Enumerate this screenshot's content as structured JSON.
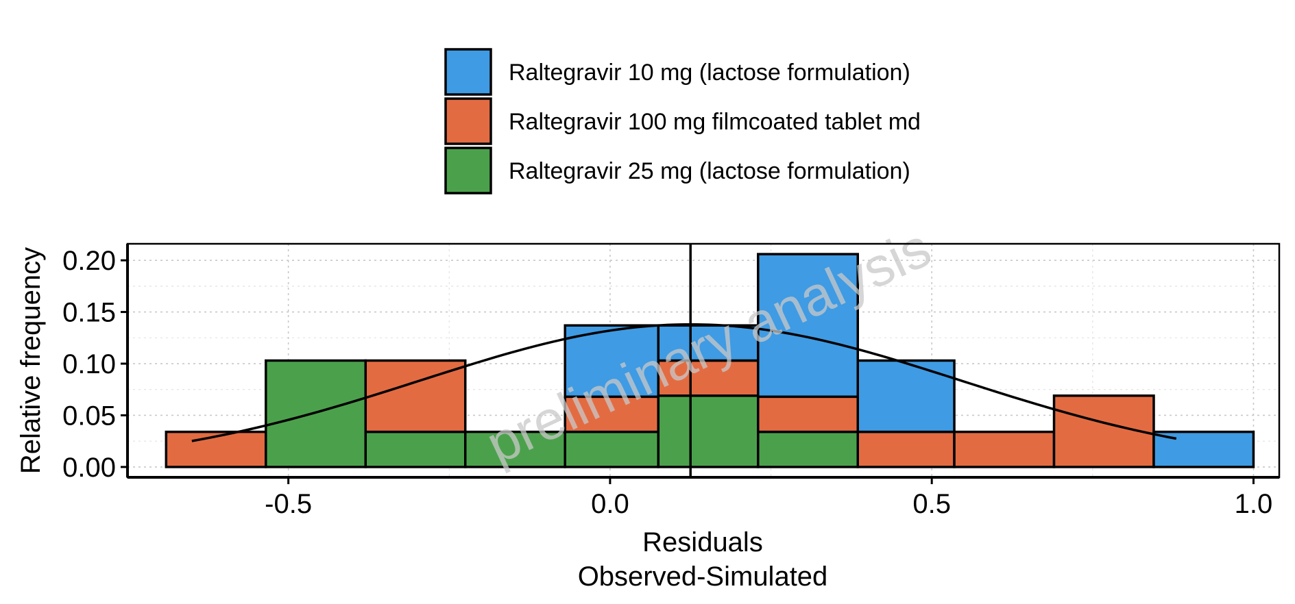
{
  "chart_data": {
    "type": "bar",
    "subtype": "stacked-histogram",
    "xlabel": "Residuals",
    "xlabel_line2": "Observed-Simulated",
    "ylabel": "Relative frequency",
    "xlim": [
      -0.75,
      1.04
    ],
    "ylim": [
      -0.01,
      0.216
    ],
    "x_ticks": [
      -0.5,
      0.0,
      0.5,
      1.0
    ],
    "x_tick_labels": [
      "-0.5",
      "0.0",
      "0.5",
      "1.0"
    ],
    "y_ticks": [
      0.0,
      0.05,
      0.1,
      0.15,
      0.2
    ],
    "y_tick_labels": [
      "0.00",
      "0.05",
      "0.10",
      "0.15",
      "0.20"
    ],
    "grid": true,
    "legend_position": "top",
    "watermark": "preliminary analysis",
    "vertical_line_x": 0.125,
    "bin_edges": [
      -0.69,
      -0.535,
      -0.38,
      -0.225,
      -0.07,
      0.075,
      0.23,
      0.385,
      0.535,
      0.69,
      0.845,
      1.0
    ],
    "series": [
      {
        "name": "Raltegravir 25 mg (lactose formulation)",
        "color": "#4ba14b",
        "values": [
          0,
          0.103,
          0.034,
          0.034,
          0.034,
          0.069,
          0.034,
          0,
          0,
          0,
          0
        ]
      },
      {
        "name": "Raltegravir 100 mg filmcoated tablet md",
        "color": "#e36b42",
        "values": [
          0.034,
          0,
          0.069,
          0,
          0.034,
          0.034,
          0.034,
          0.034,
          0.034,
          0.069,
          0
        ]
      },
      {
        "name": "Raltegravir 10 mg (lactose formulation)",
        "color": "#3f9be3",
        "values": [
          0,
          0,
          0,
          0,
          0.069,
          0.034,
          0.138,
          0.069,
          0,
          0,
          0.034
        ]
      }
    ],
    "legend_order": [
      2,
      1,
      0
    ],
    "density_curve": {
      "mean": 0.125,
      "sd": 0.42,
      "scale": 0.138,
      "x_range": [
        -0.65,
        0.88
      ]
    }
  }
}
